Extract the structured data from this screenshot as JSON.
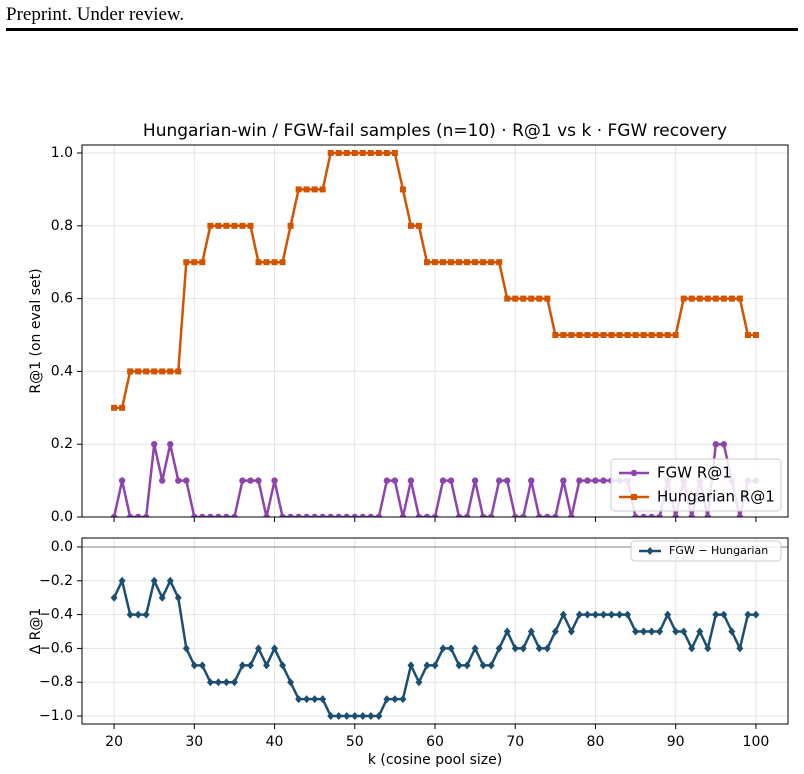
{
  "header": {
    "text": "Preprint. Under review."
  },
  "chart_data": [
    {
      "type": "line",
      "title": "Hungarian-win / FGW-fail samples (n=10) · R@1 vs k · FGW recovery",
      "y_label": "R@1 (on eval set)",
      "x": [
        20,
        21,
        22,
        23,
        24,
        25,
        26,
        27,
        28,
        29,
        30,
        31,
        32,
        33,
        34,
        35,
        36,
        37,
        38,
        39,
        40,
        41,
        42,
        43,
        44,
        45,
        46,
        47,
        48,
        49,
        50,
        51,
        52,
        53,
        54,
        55,
        56,
        57,
        58,
        59,
        60,
        61,
        62,
        63,
        64,
        65,
        66,
        67,
        68,
        69,
        70,
        71,
        72,
        73,
        74,
        75,
        76,
        77,
        78,
        79,
        80,
        81,
        82,
        83,
        84,
        85,
        86,
        87,
        88,
        89,
        90,
        91,
        92,
        93,
        94,
        95,
        96,
        97,
        98,
        99,
        100
      ],
      "series": [
        {
          "name": "FGW R@1",
          "color": "#8e44ad",
          "marker": "circle",
          "values": [
            0,
            0.1,
            0,
            0,
            0,
            0.2,
            0.1,
            0.2,
            0.1,
            0.1,
            0,
            0,
            0,
            0,
            0,
            0,
            0.1,
            0.1,
            0.1,
            0,
            0.1,
            0,
            0,
            0,
            0,
            0,
            0,
            0,
            0,
            0,
            0,
            0,
            0,
            0,
            0.1,
            0.1,
            0,
            0.1,
            0,
            0,
            0,
            0.1,
            0.1,
            0,
            0,
            0.1,
            0,
            0,
            0.1,
            0.1,
            0,
            0,
            0.1,
            0,
            0,
            0,
            0.1,
            0,
            0.1,
            0.1,
            0.1,
            0.1,
            0.1,
            0.1,
            0.1,
            0,
            0,
            0,
            0,
            0.1,
            0,
            0.1,
            0,
            0.1,
            0,
            0.2,
            0.2,
            0.1,
            0,
            0.1,
            0.1
          ]
        },
        {
          "name": "Hungarian R@1",
          "color": "#d35400",
          "marker": "square",
          "values": [
            0.3,
            0.3,
            0.4,
            0.4,
            0.4,
            0.4,
            0.4,
            0.4,
            0.4,
            0.7,
            0.7,
            0.7,
            0.8,
            0.8,
            0.8,
            0.8,
            0.8,
            0.8,
            0.7,
            0.7,
            0.7,
            0.7,
            0.8,
            0.9,
            0.9,
            0.9,
            0.9,
            1.0,
            1.0,
            1.0,
            1.0,
            1.0,
            1.0,
            1.0,
            1.0,
            1.0,
            0.9,
            0.8,
            0.8,
            0.7,
            0.7,
            0.7,
            0.7,
            0.7,
            0.7,
            0.7,
            0.7,
            0.7,
            0.7,
            0.6,
            0.6,
            0.6,
            0.6,
            0.6,
            0.6,
            0.5,
            0.5,
            0.5,
            0.5,
            0.5,
            0.5,
            0.5,
            0.5,
            0.5,
            0.5,
            0.5,
            0.5,
            0.5,
            0.5,
            0.5,
            0.5,
            0.6,
            0.6,
            0.6,
            0.6,
            0.6,
            0.6,
            0.6,
            0.6,
            0.5,
            0.5
          ]
        }
      ],
      "xlim": [
        16,
        104
      ],
      "ylim": [
        0,
        1.022
      ],
      "yticks": [
        {
          "value": 0,
          "label": "0.0"
        },
        0.2,
        0.4,
        0.6,
        0.8,
        {
          "value": 1,
          "label": "1.0"
        }
      ],
      "grid": true,
      "legend": "lower right"
    },
    {
      "type": "line",
      "x_label": "k (cosine pool size)",
      "y_label": "Δ R@1",
      "x": [
        20,
        21,
        22,
        23,
        24,
        25,
        26,
        27,
        28,
        29,
        30,
        31,
        32,
        33,
        34,
        35,
        36,
        37,
        38,
        39,
        40,
        41,
        42,
        43,
        44,
        45,
        46,
        47,
        48,
        49,
        50,
        51,
        52,
        53,
        54,
        55,
        56,
        57,
        58,
        59,
        60,
        61,
        62,
        63,
        64,
        65,
        66,
        67,
        68,
        69,
        70,
        71,
        72,
        73,
        74,
        75,
        76,
        77,
        78,
        79,
        80,
        81,
        82,
        83,
        84,
        85,
        86,
        87,
        88,
        89,
        90,
        91,
        92,
        93,
        94,
        95,
        96,
        97,
        98,
        99,
        100
      ],
      "series": [
        {
          "name": "FGW − Hungarian",
          "color": "#1b4f72",
          "marker": "diamond",
          "values": [
            -0.3,
            -0.2,
            -0.4,
            -0.4,
            -0.4,
            -0.2,
            -0.3,
            -0.2,
            -0.3,
            -0.6,
            -0.7,
            -0.7,
            -0.8,
            -0.8,
            -0.8,
            -0.8,
            -0.7,
            -0.7,
            -0.6,
            -0.7,
            -0.6,
            -0.7,
            -0.8,
            -0.9,
            -0.9,
            -0.9,
            -0.9,
            -1.0,
            -1.0,
            -1.0,
            -1.0,
            -1.0,
            -1.0,
            -1.0,
            -0.9,
            -0.9,
            -0.9,
            -0.7,
            -0.8,
            -0.7,
            -0.7,
            -0.6,
            -0.6,
            -0.7,
            -0.7,
            -0.6,
            -0.7,
            -0.7,
            -0.6,
            -0.5,
            -0.6,
            -0.6,
            -0.5,
            -0.6,
            -0.6,
            -0.5,
            -0.4,
            -0.5,
            -0.4,
            -0.4,
            -0.4,
            -0.4,
            -0.4,
            -0.4,
            -0.4,
            -0.5,
            -0.5,
            -0.5,
            -0.5,
            -0.4,
            -0.5,
            -0.5,
            -0.6,
            -0.5,
            -0.6,
            -0.4,
            -0.4,
            -0.5,
            -0.6,
            -0.4,
            -0.4
          ]
        }
      ],
      "xlim": [
        16,
        104
      ],
      "ylim": [
        -1.047,
        0.053
      ],
      "xticks": [
        20,
        30,
        40,
        50,
        60,
        70,
        80,
        90,
        100
      ],
      "yticks": [
        {
          "value": 0,
          "label": "0.0"
        },
        {
          "value": -0.2,
          "label": "−0.2"
        },
        {
          "value": -0.4,
          "label": "−0.4"
        },
        {
          "value": -0.6,
          "label": "−0.6"
        },
        {
          "value": -0.8,
          "label": "−0.8"
        },
        {
          "value": -1,
          "label": "−1.0"
        }
      ],
      "hline": 0,
      "grid": true,
      "legend": "upper right"
    }
  ]
}
